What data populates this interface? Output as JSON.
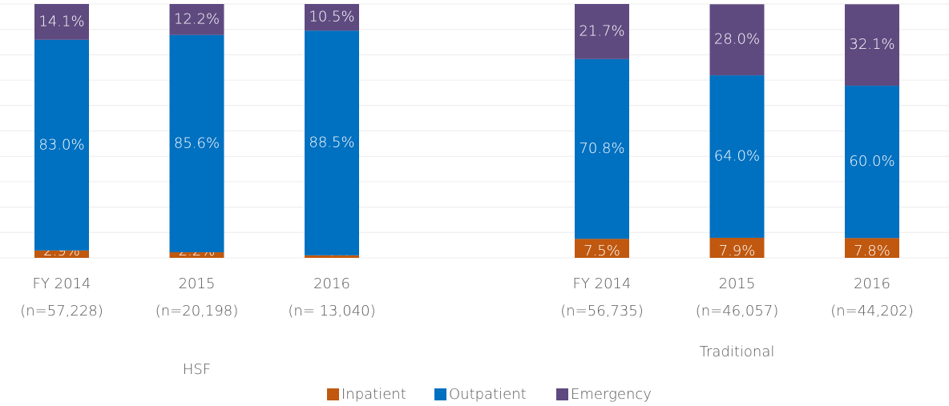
{
  "chart_data": {
    "type": "stacked_bar",
    "categories": [
      [
        "FY 2014",
        "(n=57,228)"
      ],
      [
        "2015",
        "(n=20,198)"
      ],
      [
        "2016",
        "(n= 13,040)"
      ],
      [
        "FY 2014",
        "(n=56,735)"
      ],
      [
        "2015",
        "(n=46,057)"
      ],
      [
        "2016",
        "(n=44,202)"
      ]
    ],
    "groups": [
      "HSF",
      "Traditional"
    ],
    "series": [
      {
        "name": "Inpatient",
        "color": "#c0580f",
        "values": [
          2.9,
          2.2,
          1.0,
          7.5,
          7.9,
          7.8
        ],
        "value_labels": [
          "2.9%",
          "2.2%",
          "1.0%",
          "7.5%",
          "7.9%",
          "7.8%"
        ]
      },
      {
        "name": "Outpatient",
        "color": "#0070c0",
        "values": [
          83.0,
          85.6,
          88.5,
          70.8,
          64.0,
          60.0
        ],
        "value_labels": [
          "83.0%",
          "85.6%",
          "88.5%",
          "70.8%",
          "64.0%",
          "60.0%"
        ]
      },
      {
        "name": "Emergency",
        "color": "#5f4a80",
        "values": [
          14.1,
          12.2,
          10.5,
          21.7,
          28.0,
          32.1
        ],
        "value_labels": [
          "14.1%",
          "12.2%",
          "10.5%",
          "21.7%",
          "28.0%",
          "32.1%"
        ]
      }
    ],
    "ylim": [
      0,
      100
    ],
    "yticks": [
      0,
      10,
      20,
      30,
      40,
      50,
      60,
      70,
      80,
      90,
      100
    ],
    "grid": true,
    "legend": "bottom"
  }
}
